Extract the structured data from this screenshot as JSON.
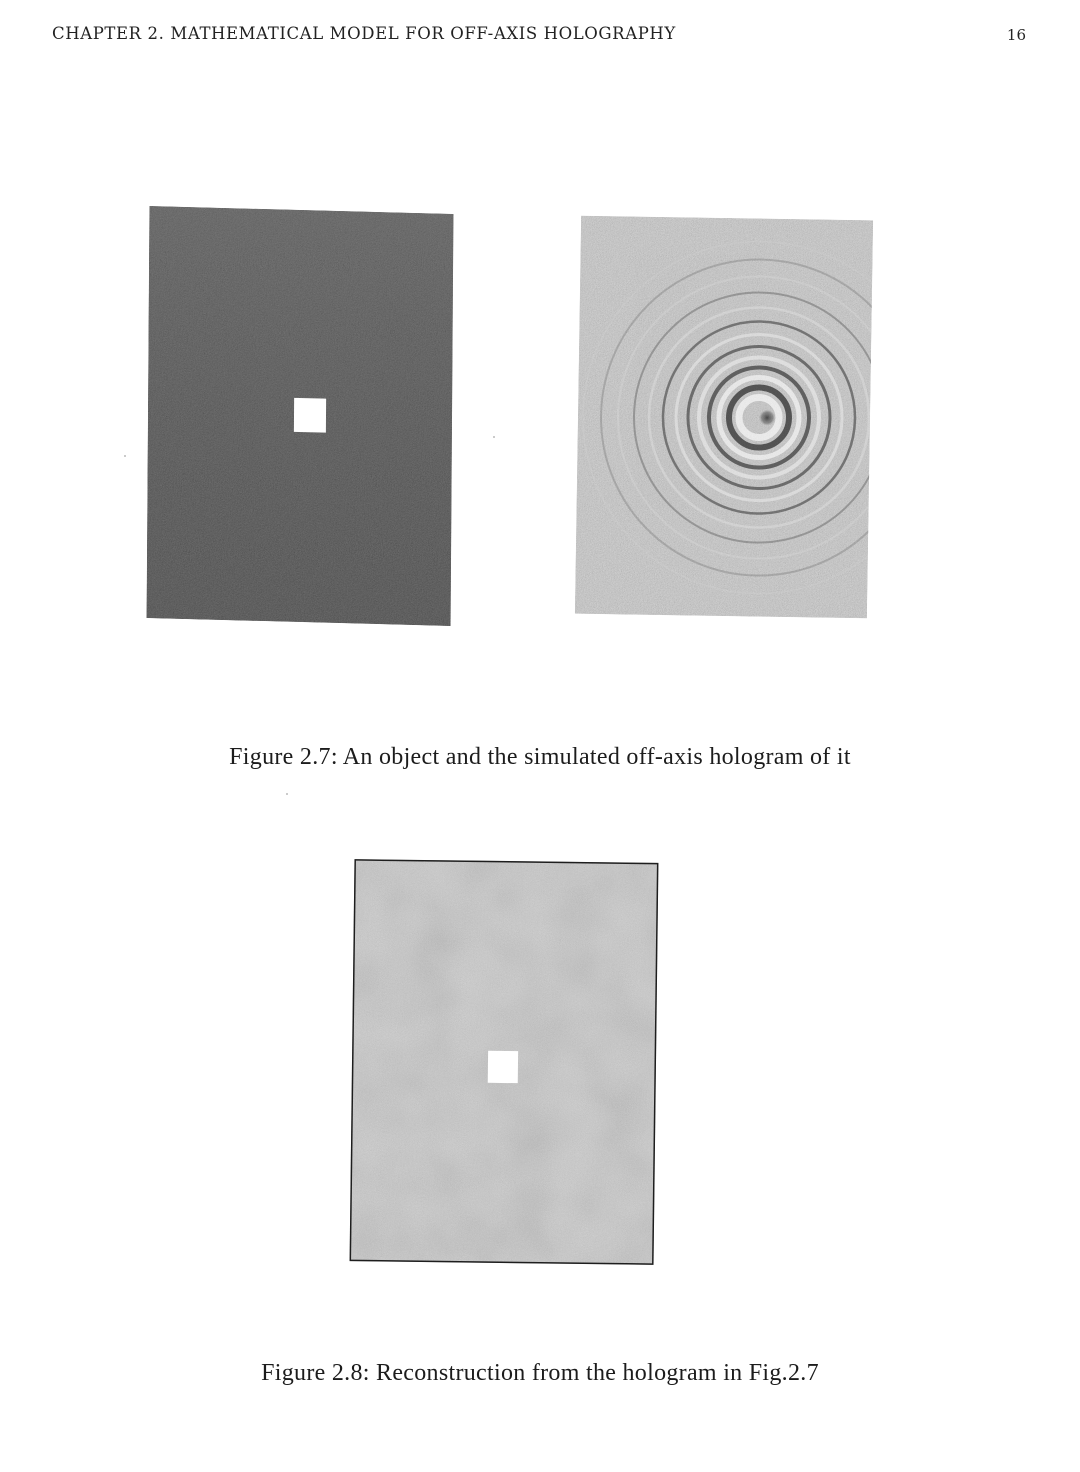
{
  "header": {
    "chapter_title": "CHAPTER 2.  MATHEMATICAL MODEL FOR OFF-AXIS HOLOGRAPHY",
    "page_number": "16"
  },
  "figures": [
    {
      "caption": "Figure 2.7: An object and the simulated off-axis hologram of it",
      "panels": [
        "object-image",
        "hologram-image"
      ]
    },
    {
      "caption": "Figure 2.8: Reconstruction from the hologram in Fig.2.7",
      "panels": [
        "reconstruction-image"
      ]
    }
  ],
  "colors": {
    "object_background": "#2e2e2e",
    "hologram_background": "#a9a9a9",
    "reconstruction_background": "#b4b4b4",
    "square": "#ffffff"
  }
}
